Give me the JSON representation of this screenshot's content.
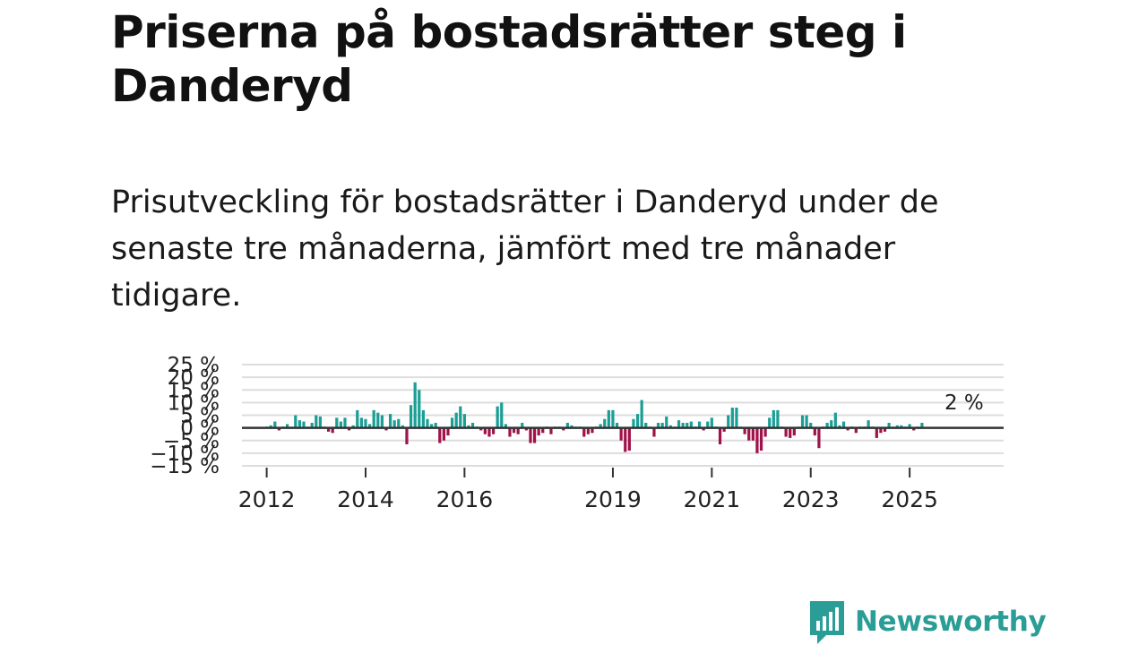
{
  "title": "Priserna på bostadsrätter steg i Danderyd",
  "subtitle": "Prisutveckling för bostadsrätter i Danderyd under de senaste tre månaderna, jämfört med tre månader tidigare.",
  "logo": {
    "text": "Newsworthy",
    "icon": "newsworthy-bar-chart-icon"
  },
  "colors": {
    "positive": "#1a9e95",
    "negative": "#a0124a",
    "grid": "#dddddd",
    "zero": "#333333",
    "brand": "#2a9d96"
  },
  "chart_data": {
    "type": "bar",
    "title": "Priserna på bostadsrätter steg i Danderyd",
    "xlabel": "",
    "ylabel": "",
    "unit": "%",
    "ylim": [
      -15,
      25
    ],
    "yticks": [
      -15,
      -10,
      -5,
      0,
      5,
      10,
      15,
      20,
      25
    ],
    "ytick_labels": [
      "−15 %",
      "−10 %",
      "−5 %",
      "0 %",
      "5 %",
      "10 %",
      "15 %",
      "20 %",
      "25 %"
    ],
    "xlim": [
      2011.5,
      2026.9
    ],
    "xticks": [
      2012,
      2014,
      2016,
      2019,
      2021,
      2023,
      2025
    ],
    "xtick_labels": [
      "2012",
      "2014",
      "2016",
      "2019",
      "2021",
      "2023",
      "2025"
    ],
    "grid": true,
    "annotation": {
      "label": "2 %",
      "x": 2026.1,
      "value": 2
    },
    "series": [
      {
        "name": "Prisutveckling",
        "start": 2012.0,
        "step": 0.08333,
        "values": [
          0.5,
          1,
          2.5,
          -1,
          0.5,
          1.5,
          0.5,
          5,
          3,
          2.5,
          0.5,
          2,
          5,
          4.5,
          0.5,
          -1.5,
          -2,
          4,
          2.5,
          4,
          -1,
          1,
          7,
          4,
          3.5,
          1.5,
          7,
          6,
          5,
          -1,
          5.5,
          3,
          3.5,
          1,
          -6.5,
          9,
          18,
          15,
          7,
          3.5,
          1.5,
          2,
          -6,
          -5,
          -3,
          4,
          6,
          8.5,
          5.5,
          1,
          2,
          0.5,
          -1,
          -2.5,
          -3.5,
          -2.5,
          8.5,
          10,
          1.5,
          -3.5,
          -2,
          -2.5,
          2,
          -1,
          -6,
          -6,
          -3,
          -2,
          0.5,
          -2.5,
          0.5,
          0.5,
          -1,
          2,
          1,
          0.5,
          0.5,
          -3.5,
          -2.5,
          -2,
          0.5,
          1.5,
          3.5,
          7,
          7,
          2,
          -5,
          -9.5,
          -9,
          3.5,
          5.5,
          11,
          2,
          0.5,
          -3.5,
          2,
          2,
          4.5,
          1,
          0.5,
          3,
          2,
          2,
          2.5,
          0.5,
          2.5,
          -1,
          2.5,
          4,
          0.5,
          -6.5,
          -1.5,
          5,
          8,
          8,
          0.5,
          -2.5,
          -5,
          -5,
          -10,
          -9,
          -3.5,
          4,
          7,
          7,
          0.5,
          -3.5,
          -4,
          -3,
          0.5,
          5,
          5,
          2,
          -3,
          -8,
          0.5,
          2,
          3,
          6,
          1,
          2.5,
          -1,
          0.5,
          -2,
          0.5,
          0.5,
          3,
          0.5,
          -4,
          -2,
          -1.5,
          2,
          0.5,
          1,
          1,
          0.5,
          1.5,
          -1,
          0.5,
          2
        ]
      }
    ]
  }
}
